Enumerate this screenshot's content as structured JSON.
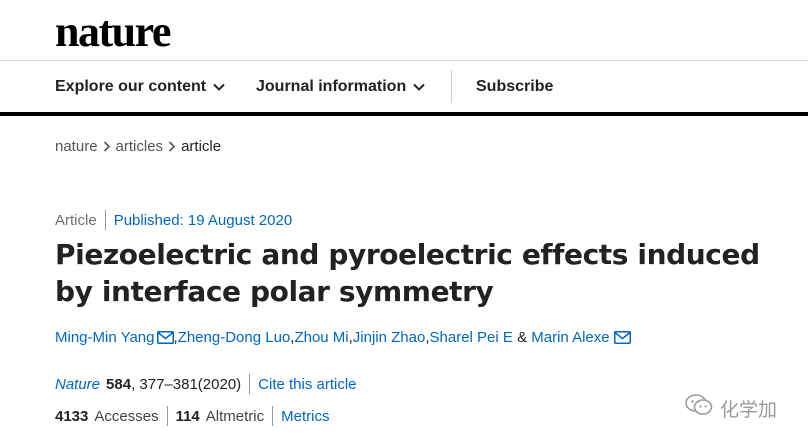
{
  "site": {
    "logo": "nature"
  },
  "nav": {
    "items": [
      {
        "label": "Explore our content"
      },
      {
        "label": "Journal information"
      },
      {
        "label": "Subscribe"
      }
    ]
  },
  "breadcrumb": {
    "items": [
      "nature",
      "articles",
      "article"
    ]
  },
  "article": {
    "type": "Article",
    "published": "Published: 19 August 2020",
    "title": "Piezoelectric and pyroelectric effects induced by interface polar symmetry",
    "authors": [
      "Ming-Min Yang",
      "Zheng-Dong Luo",
      "Zhou Mi",
      "Jinjin Zhao",
      "Sharel Pei E",
      "Marin Alexe"
    ],
    "author_separator": ", ",
    "author_last_joiner": " & ",
    "citation": {
      "journal": "Nature",
      "volume": "584",
      "pages": ", 377–381(2020)",
      "cite_label": "Cite this article"
    },
    "metrics": {
      "accesses_value": "4133",
      "accesses_label": "Accesses",
      "altmetric_value": "114",
      "altmetric_label": "Altmetric",
      "metrics_link": "Metrics"
    }
  },
  "watermark": {
    "text": "化学加"
  },
  "colors": {
    "link": "#0067c5",
    "text": "#222222",
    "nav_bar": "#000000"
  }
}
